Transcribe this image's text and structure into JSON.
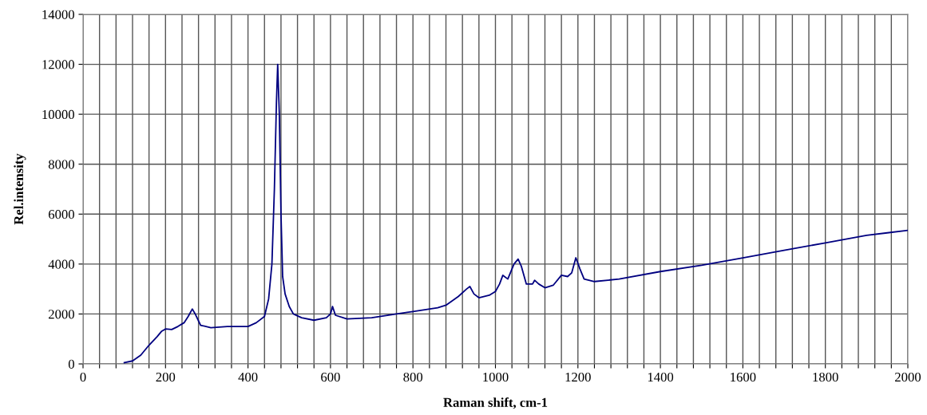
{
  "chart_data": {
    "type": "line",
    "xlabel": "Raman shift, cm-1",
    "ylabel": "Rel.intensity",
    "xlim": [
      0,
      2000
    ],
    "ylim": [
      0,
      14000
    ],
    "xticks": [
      0,
      {
        "value": 40,
        "label": null
      },
      {
        "value": 80,
        "label": null
      },
      {
        "value": 120,
        "label": null
      },
      {
        "value": 160,
        "label": null
      },
      200,
      {
        "value": 240,
        "label": null
      },
      {
        "value": 280,
        "label": null
      },
      {
        "value": 320,
        "label": null
      },
      {
        "value": 360,
        "label": null
      },
      400,
      {
        "value": 440,
        "label": null
      },
      {
        "value": 480,
        "label": null
      },
      {
        "value": 520,
        "label": null
      },
      {
        "value": 560,
        "label": null
      },
      600,
      {
        "value": 640,
        "label": null
      },
      {
        "value": 680,
        "label": null
      },
      {
        "value": 720,
        "label": null
      },
      {
        "value": 760,
        "label": null
      },
      800,
      {
        "value": 840,
        "label": null
      },
      {
        "value": 880,
        "label": null
      },
      {
        "value": 920,
        "label": null
      },
      {
        "value": 960,
        "label": null
      },
      1000,
      {
        "value": 1040,
        "label": null
      },
      {
        "value": 1080,
        "label": null
      },
      {
        "value": 1120,
        "label": null
      },
      {
        "value": 1160,
        "label": null
      },
      1200,
      {
        "value": 1240,
        "label": null
      },
      {
        "value": 1280,
        "label": null
      },
      {
        "value": 1320,
        "label": null
      },
      {
        "value": 1360,
        "label": null
      },
      1400,
      {
        "value": 1440,
        "label": null
      },
      {
        "value": 1480,
        "label": null
      },
      {
        "value": 1520,
        "label": null
      },
      {
        "value": 1560,
        "label": null
      },
      1600,
      {
        "value": 1640,
        "label": null
      },
      {
        "value": 1680,
        "label": null
      },
      {
        "value": 1720,
        "label": null
      },
      {
        "value": 1760,
        "label": null
      },
      1800,
      {
        "value": 1840,
        "label": null
      },
      {
        "value": 1880,
        "label": null
      },
      {
        "value": 1920,
        "label": null
      },
      {
        "value": 1960,
        "label": null
      },
      2000
    ],
    "yticks": [
      0,
      2000,
      4000,
      6000,
      8000,
      10000,
      12000,
      14000
    ],
    "grid": true,
    "marker": "none",
    "line_style": "solid",
    "series": [
      {
        "color": "#000080",
        "x": [
          100,
          120,
          140,
          160,
          180,
          190,
          200,
          215,
          230,
          245,
          255,
          265,
          272,
          285,
          310,
          350,
          400,
          420,
          440,
          450,
          458,
          464,
          469,
          472,
          476,
          480,
          484,
          490,
          500,
          510,
          530,
          560,
          590,
          600,
          605,
          612,
          640,
          700,
          760,
          800,
          860,
          880,
          910,
          930,
          938,
          948,
          960,
          985,
          1000,
          1010,
          1018,
          1030,
          1045,
          1055,
          1063,
          1075,
          1090,
          1095,
          1105,
          1120,
          1140,
          1160,
          1175,
          1185,
          1195,
          1205,
          1215,
          1240,
          1300,
          1400,
          1500,
          1600,
          1700,
          1800,
          1900,
          1950,
          2000
        ],
        "values": [
          50,
          120,
          350,
          750,
          1100,
          1300,
          1400,
          1380,
          1500,
          1650,
          1900,
          2200,
          2000,
          1550,
          1450,
          1500,
          1500,
          1650,
          1900,
          2600,
          4000,
          7000,
          10500,
          12000,
          10000,
          6000,
          3500,
          2800,
          2300,
          2000,
          1850,
          1750,
          1850,
          2000,
          2300,
          1950,
          1800,
          1850,
          2000,
          2100,
          2250,
          2350,
          2700,
          3000,
          3100,
          2800,
          2650,
          2750,
          2900,
          3200,
          3550,
          3400,
          4000,
          4200,
          3900,
          3200,
          3200,
          3350,
          3200,
          3050,
          3150,
          3550,
          3500,
          3650,
          4250,
          3800,
          3400,
          3300,
          3400,
          3700,
          3950,
          4250,
          4550,
          4850,
          5150,
          5250,
          5350
        ]
      }
    ]
  }
}
